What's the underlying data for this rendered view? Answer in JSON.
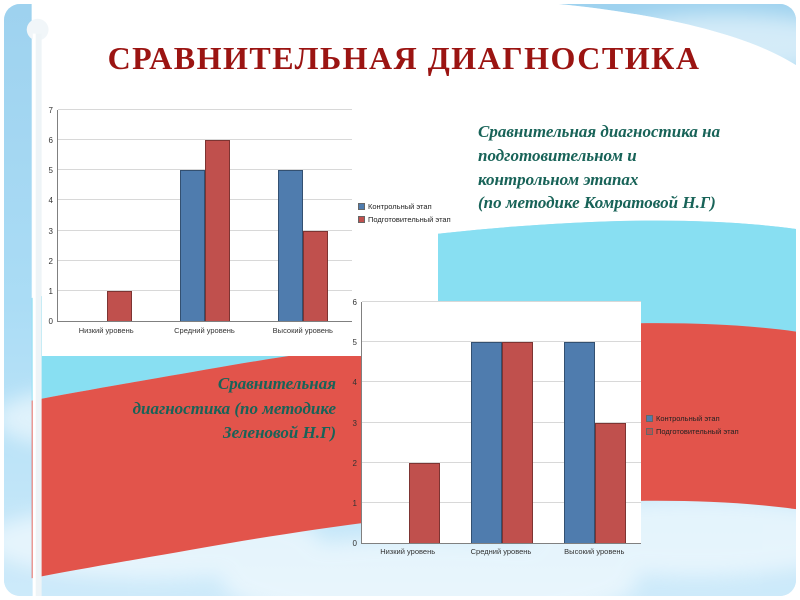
{
  "slide": {
    "title": "СРАВНИТЕЛЬНАЯ ДИАГНОСТИКА",
    "caption_right": "Сравнительная диагностика  на\nподготовительном  и\nконтрольном этапах\n (по методике Комратовой  Н.Г)",
    "caption_left": "Сравнительная\nдиагностика  (по методике\nЗеленовой Н.Г)"
  },
  "colors": {
    "title_text": "#9b1412",
    "caption_text": "#186358",
    "bar_blue": "#4f7cae",
    "bar_red": "#c0504d",
    "flag_white": "#ffffff",
    "flag_blue": "#88dff2",
    "flag_red": "#e2544b"
  },
  "chart_data": [
    {
      "type": "bar",
      "title": "",
      "categories": [
        "Низкий уровень",
        "Средний уровень",
        "Высокий уровень"
      ],
      "series": [
        {
          "name": "Контрольный этап",
          "color": "#4f7cae",
          "values": [
            0,
            5,
            5
          ]
        },
        {
          "name": "Подготовительный этап",
          "color": "#c0504d",
          "values": [
            1,
            6,
            3
          ]
        }
      ],
      "ylim": [
        0,
        7
      ],
      "ytick_step": 1,
      "grid": true,
      "legend_position": "right"
    },
    {
      "type": "bar",
      "title": "",
      "categories": [
        "Низкий уровень",
        "Средний уровень",
        "Высокий уровень"
      ],
      "series": [
        {
          "name": "Контрольный этап",
          "color": "#4f7cae",
          "values": [
            0,
            5,
            5
          ]
        },
        {
          "name": "Подготовительный этап",
          "color": "#c0504d",
          "values": [
            2,
            5,
            3
          ]
        }
      ],
      "ylim": [
        0,
        6
      ],
      "ytick_step": 1,
      "grid": true,
      "legend_position": "right"
    }
  ]
}
